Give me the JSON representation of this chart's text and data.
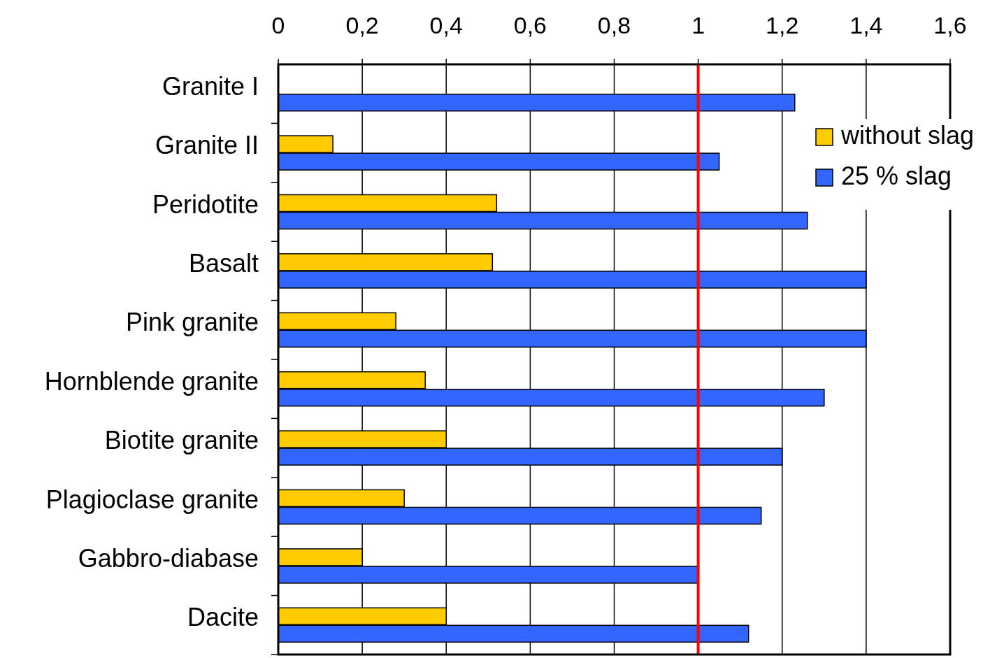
{
  "chart_data": {
    "type": "bar",
    "orientation": "horizontal",
    "categories": [
      "Granite I",
      "Granite II",
      "Peridotite",
      "Basalt",
      "Pink granite",
      "Hornblende granite",
      "Biotite granite",
      "Plagioclase granite",
      "Gabbro-diabase",
      "Dacite"
    ],
    "series": [
      {
        "name": "without slag",
        "color": "#ffcc00",
        "values": [
          null,
          0.13,
          0.52,
          0.51,
          0.28,
          0.35,
          0.4,
          0.3,
          0.2,
          0.4
        ]
      },
      {
        "name": "25 % slag",
        "color": "#3366ff",
        "values": [
          1.23,
          1.05,
          1.26,
          1.4,
          1.4,
          1.3,
          1.2,
          1.15,
          1.0,
          1.12
        ]
      }
    ],
    "xlim": [
      0,
      1.6
    ],
    "xticks": [
      0,
      {
        "value": 0.2,
        "label": "0,2"
      },
      {
        "value": 0.4,
        "label": "0,4"
      },
      {
        "value": 0.6,
        "label": "0,6"
      },
      {
        "value": 0.8,
        "label": "0,8"
      },
      1,
      {
        "value": 1.2,
        "label": "1,2"
      },
      {
        "value": 1.4,
        "label": "1,4"
      },
      {
        "value": 1.6,
        "label": "1,6"
      }
    ],
    "grid": "x",
    "legend": "top right",
    "ref_lines": [
      {
        "axis": "x",
        "value": 1,
        "color": "#ff0000"
      }
    ]
  }
}
